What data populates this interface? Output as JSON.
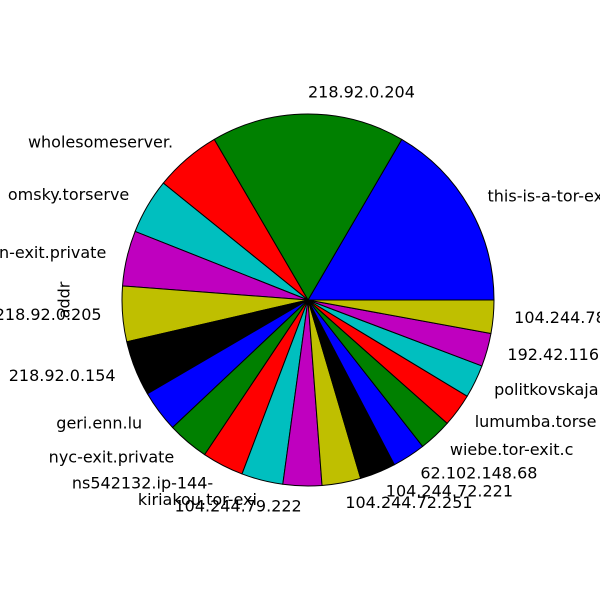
{
  "chart_data": {
    "type": "pie",
    "ylabel": "addr",
    "start_angle_deg": 0,
    "direction": "counterclockwise",
    "edge_color": "#000000",
    "color_cycle": [
      "#0000ff",
      "#008000",
      "#ff0000",
      "#00bfbf",
      "#bf00bf",
      "#bfbf00",
      "#000000"
    ],
    "categories": [
      "this-is-a-tor-ex",
      "218.92.0.204",
      "wholesomeserver.",
      "omsky.torserve",
      "n-exit.private",
      "218.92.0.205",
      "218.92.0.154",
      "geri.enn.lu",
      "nyc-exit.private",
      "ns542132.ip-144-",
      "kiriakou.tor-exi",
      "104.244.79.222",
      "104.244.72.251",
      "104.244.72.221",
      "62.102.148.68",
      "wiebe.tor-exit.c",
      "lumumba.torse",
      "politkovskaja",
      "192.42.116",
      "104.244.78"
    ],
    "values": [
      69,
      70,
      24,
      20,
      20,
      20,
      20,
      15,
      15,
      15,
      15,
      14,
      14,
      13,
      12,
      12,
      12,
      12,
      12,
      12
    ]
  }
}
